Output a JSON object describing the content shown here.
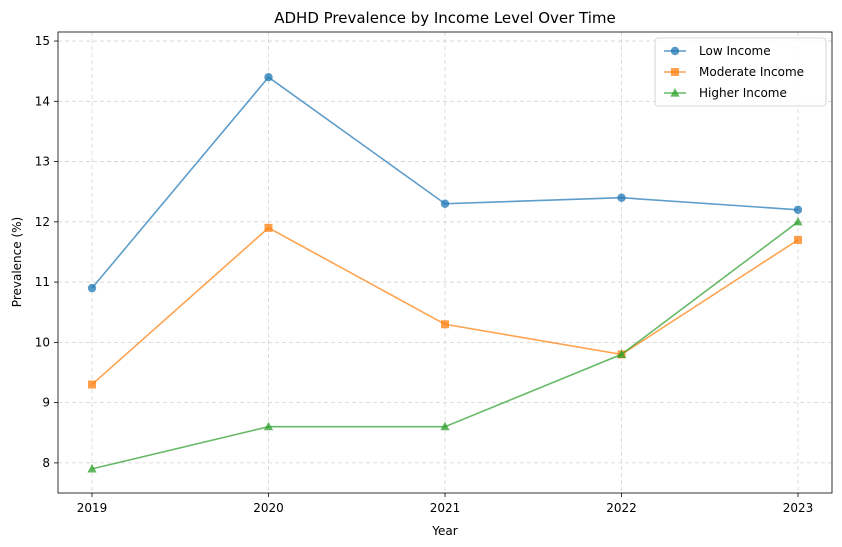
{
  "chart_data": {
    "type": "line",
    "title": "ADHD Prevalence by Income Level Over Time",
    "xlabel": "Year",
    "ylabel": "Prevalence (%)",
    "x": [
      "2019",
      "2020",
      "2021",
      "2022",
      "2023"
    ],
    "ylim": [
      7.5,
      15.15
    ],
    "yticks": [
      "8",
      "9",
      "10",
      "11",
      "12",
      "13",
      "14",
      "15"
    ],
    "grid": true,
    "legend_position": "top-right",
    "series": [
      {
        "name": "Low Income",
        "values": [
          10.9,
          14.4,
          12.3,
          12.4,
          12.2
        ],
        "color": "#1f77b4",
        "marker": "circle"
      },
      {
        "name": "Moderate Income",
        "values": [
          9.3,
          11.9,
          10.3,
          9.8,
          11.7
        ],
        "color": "#ff7f0e",
        "marker": "square"
      },
      {
        "name": "Higher Income",
        "values": [
          7.9,
          8.6,
          8.6,
          9.8,
          12.0
        ],
        "color": "#2ca02c",
        "marker": "triangle"
      }
    ]
  }
}
